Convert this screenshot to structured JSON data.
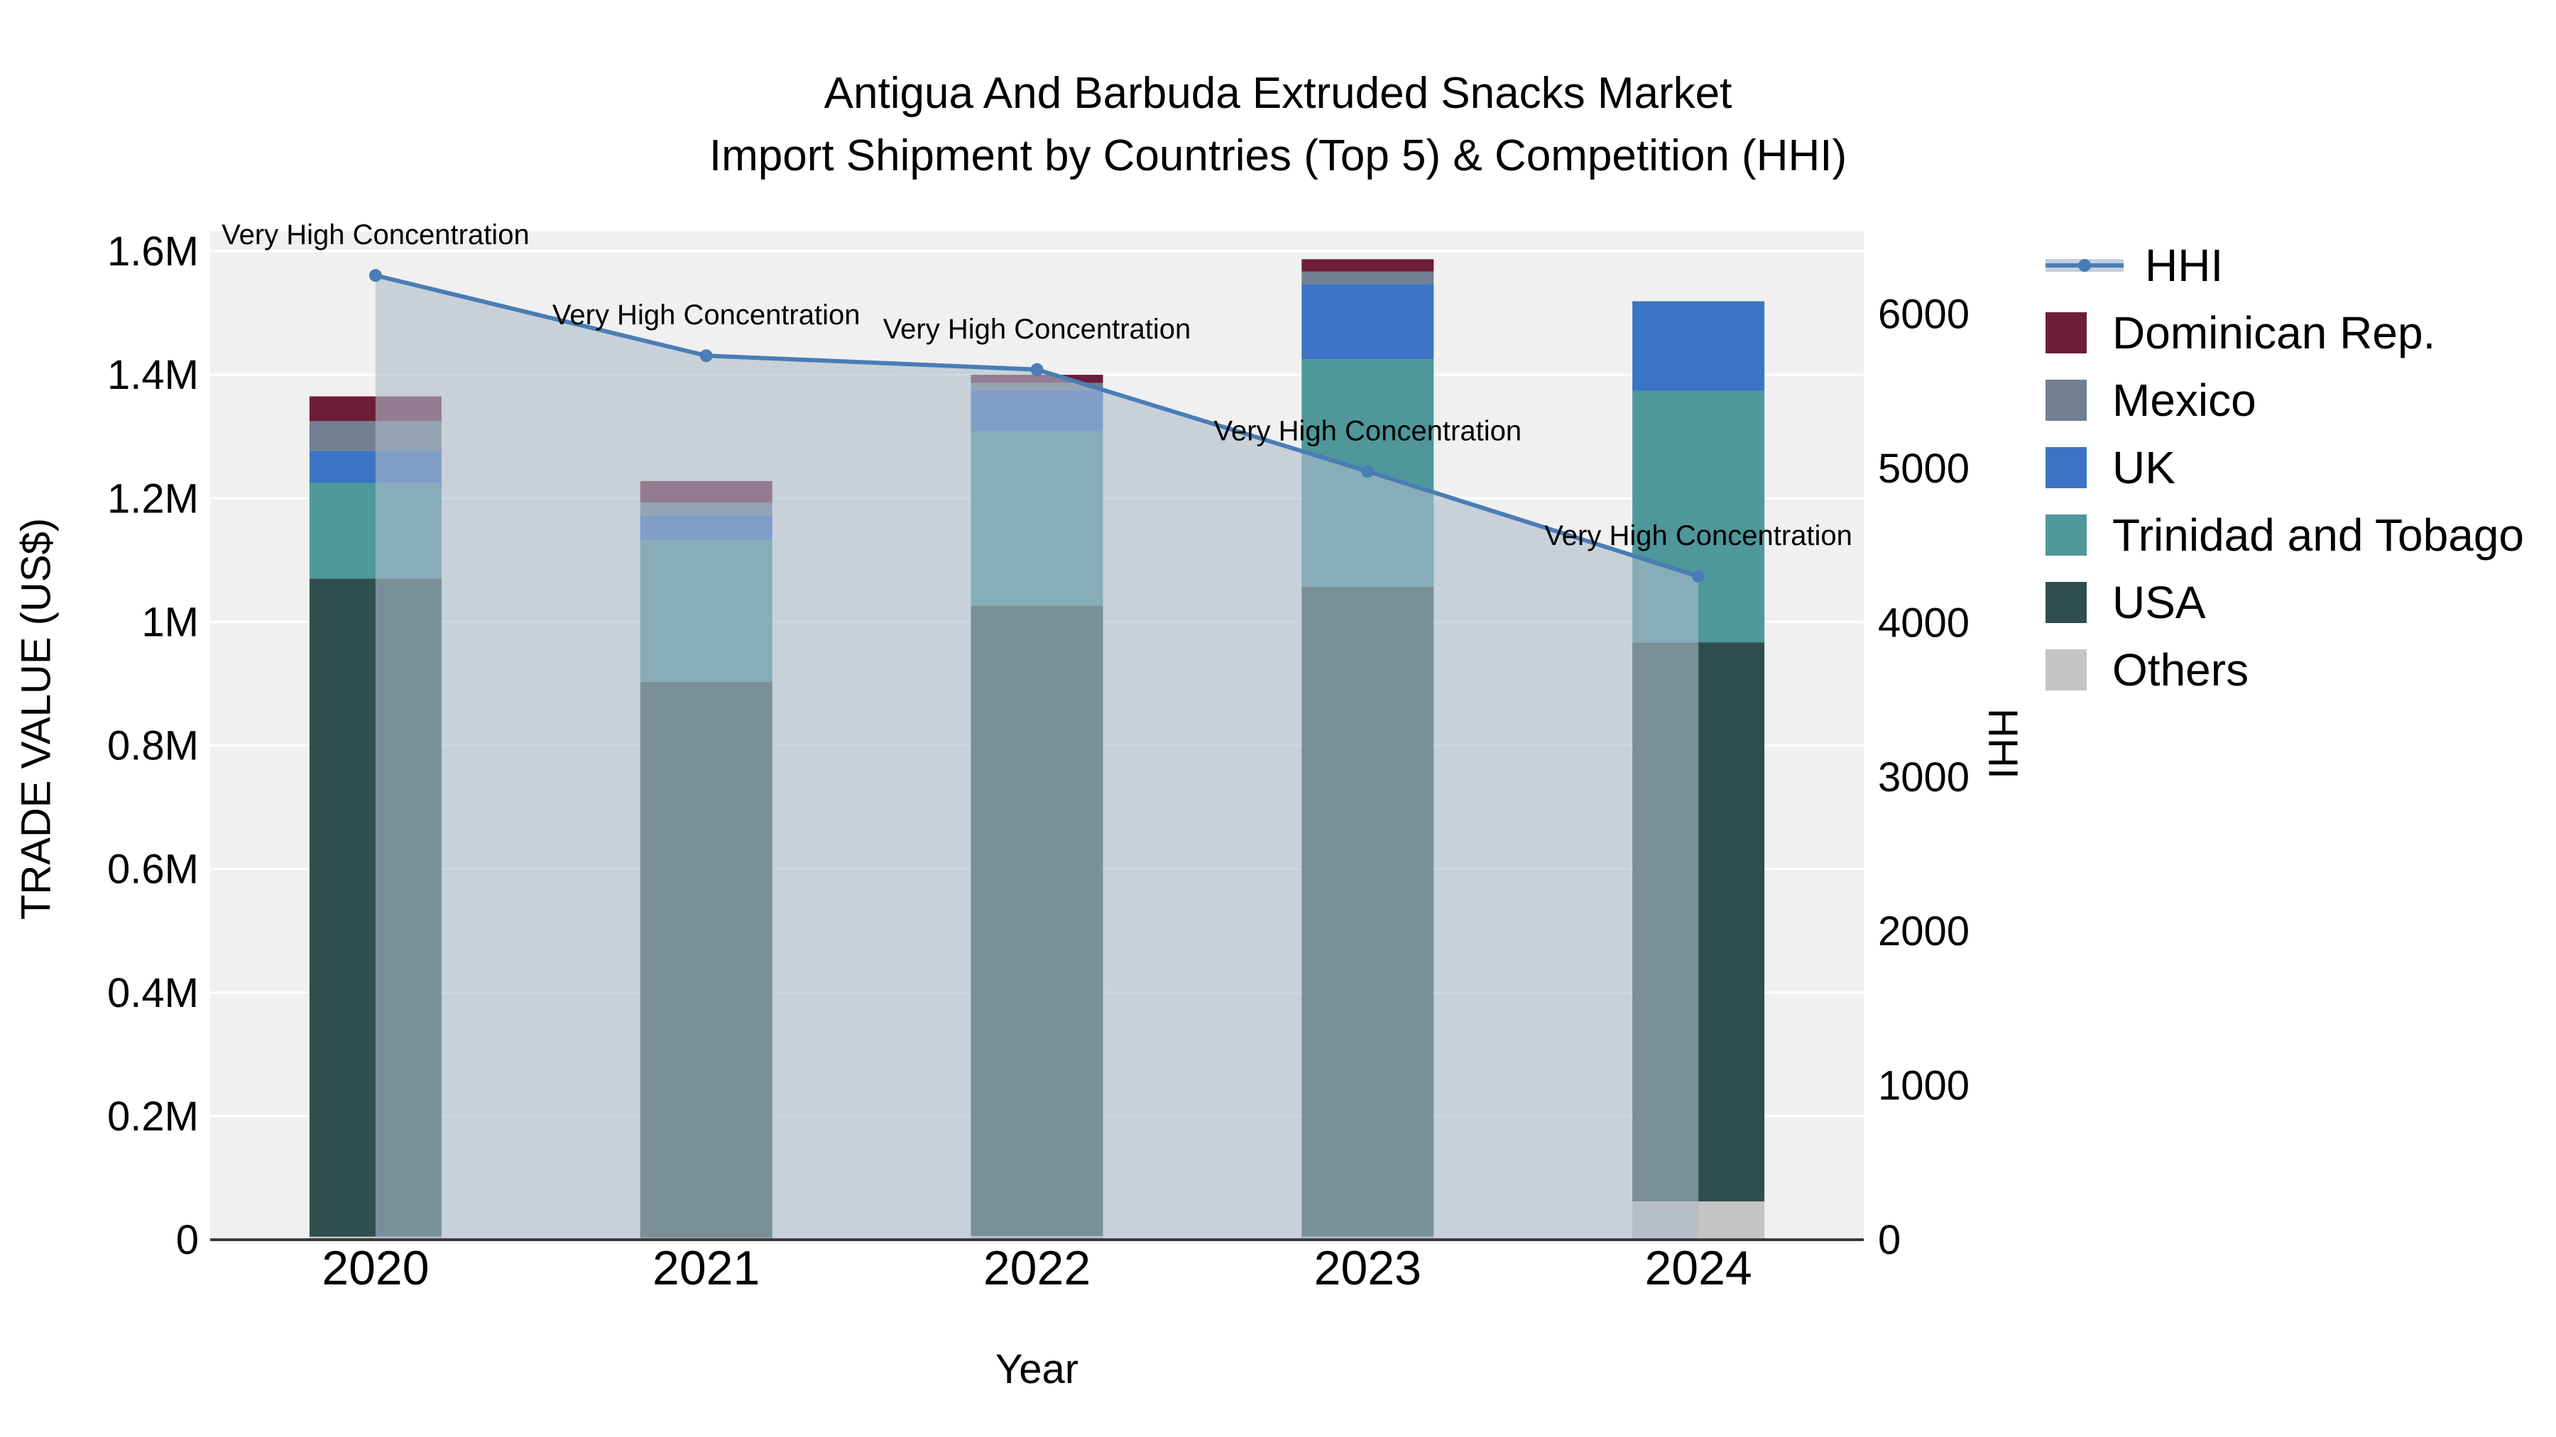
{
  "chart_data": {
    "type": "stacked-bar+line",
    "title": "Antigua And Barbuda Extruded Snacks Market",
    "subtitle": "Import Shipment by Countries (Top 5) & Competition (HHI)",
    "xlabel": "Year",
    "ylabel_left": "TRADE VALUE (US$)",
    "ylabel_right": "HHI",
    "categories": [
      "2020",
      "2021",
      "2022",
      "2023",
      "2024"
    ],
    "bar_series_bottom_to_top": [
      {
        "name": "Others",
        "color": "#c4c4c4",
        "values": [
          5000,
          3000,
          6000,
          5000,
          62000
        ]
      },
      {
        "name": "USA",
        "color": "#2f4f4f",
        "values": [
          1065000,
          900000,
          1020000,
          1052000,
          905000
        ]
      },
      {
        "name": "Trinidad and Tobago",
        "color": "#4f979b",
        "values": [
          155000,
          230000,
          282000,
          368000,
          407000
        ]
      },
      {
        "name": "UK",
        "color": "#3b74c4",
        "values": [
          52000,
          40000,
          67000,
          122000,
          145000
        ]
      },
      {
        "name": "Mexico",
        "color": "#708090",
        "values": [
          48000,
          20000,
          12000,
          20000,
          0
        ]
      },
      {
        "name": "Dominican Rep.",
        "color": "#6d1d3a",
        "values": [
          40000,
          35000,
          13000,
          20000,
          0
        ]
      }
    ],
    "line_series": {
      "name": "HHI",
      "color": "#4a7db5",
      "area_color": "#adbccc",
      "area_opacity": 0.6,
      "values": [
        6250,
        5730,
        5640,
        4980,
        4300
      ]
    },
    "annotations": [
      "Very High Concentration",
      "Very High Concentration",
      "Very High Concentration",
      "Very High Concentration",
      "Very High Concentration"
    ],
    "y_left_axis": {
      "max": 1600000,
      "tick_values": [
        0,
        200000,
        400000,
        600000,
        800000,
        1000000,
        1200000,
        1400000,
        1600000
      ],
      "tick_labels": [
        "0",
        "0.2M",
        "0.4M",
        "0.6M",
        "0.8M",
        "1M",
        "1.2M",
        "1.4M",
        "1.6M"
      ]
    },
    "y_right_axis": {
      "tick_values": [
        0,
        1000,
        2000,
        3000,
        4000,
        5000,
        6000
      ],
      "tick_labels": [
        "0",
        "1000",
        "2000",
        "3000",
        "4000",
        "5000",
        "6000"
      ]
    },
    "legend_order": [
      "HHI",
      "Dominican Rep.",
      "Mexico",
      "UK",
      "Trinidad and Tobago",
      "USA",
      "Others"
    ],
    "plot_bg": "#f0f0f0",
    "grid_color": "#ffffff",
    "axis_line_color": "#3a3a3a"
  }
}
